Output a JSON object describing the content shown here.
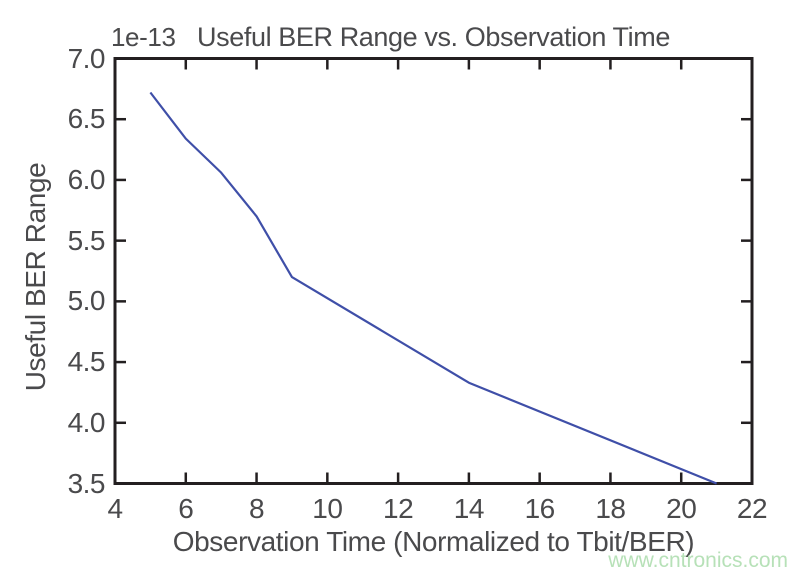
{
  "figure": {
    "title": "Useful BER Range vs. Observation Time",
    "y_offset_label": "1e-13",
    "xlabel": "Observation Time (Normalized to Tbit/BER)",
    "ylabel": "Useful BER Range",
    "watermark": "www.cntronics.com"
  },
  "colors": {
    "background": "#ffffff",
    "axis": "#231f20",
    "text": "#4a4a4c",
    "line": "#3f4fa8",
    "watermark": "#b7e1b8"
  },
  "chart_data": {
    "type": "line",
    "title": "Useful BER Range vs. Observation Time",
    "xlabel": "Observation Time (Normalized to Tbit/BER)",
    "ylabel": "Useful BER Range",
    "y_scale_factor": "1e-13",
    "x": [
      5,
      6,
      7,
      8,
      9,
      14,
      21
    ],
    "values": [
      6.72,
      6.34,
      6.06,
      5.7,
      5.2,
      4.33,
      3.5
    ],
    "xlim": [
      4,
      22
    ],
    "ylim": [
      3.5,
      7.0
    ],
    "x_ticks": [
      4,
      6,
      8,
      10,
      12,
      14,
      16,
      18,
      20,
      22
    ],
    "y_ticks": [
      7.0,
      6.5,
      6.0,
      5.5,
      5.0,
      4.5,
      4.0,
      3.5
    ],
    "grid": false,
    "legend": "none",
    "line_color": "#3f4fa8"
  }
}
